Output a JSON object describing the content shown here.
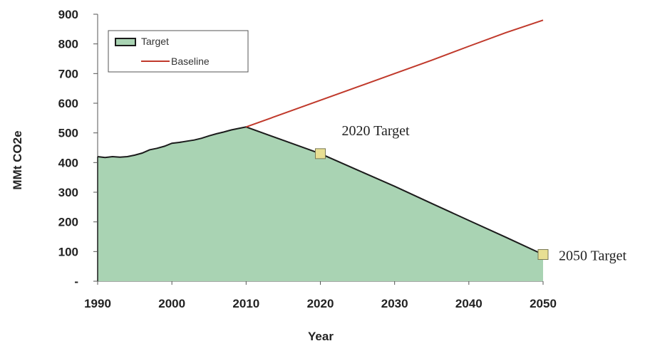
{
  "chart_data": {
    "type": "area",
    "x": [
      1990,
      1991,
      1992,
      1993,
      1994,
      1995,
      1996,
      1997,
      1998,
      1999,
      2000,
      2001,
      2002,
      2003,
      2004,
      2005,
      2006,
      2007,
      2008,
      2009,
      2010,
      2015,
      2020,
      2025,
      2030,
      2035,
      2040,
      2045,
      2050
    ],
    "series": [
      {
        "name": "Target",
        "type": "area",
        "color": "#a9d3b3",
        "edge_color": "#1b1b1b",
        "values": [
          420,
          417,
          420,
          418,
          420,
          425,
          432,
          443,
          448,
          455,
          465,
          468,
          472,
          476,
          482,
          490,
          497,
          503,
          510,
          515,
          520,
          475,
          430,
          375,
          320,
          262,
          205,
          148,
          90
        ]
      },
      {
        "name": "Baseline",
        "type": "line",
        "color": "#c0392b",
        "x": [
          2010,
          2015,
          2020,
          2025,
          2030,
          2035,
          2040,
          2045,
          2050
        ],
        "values": [
          520,
          565,
          610,
          655,
          700,
          745,
          792,
          838,
          880
        ]
      }
    ],
    "xlabel": "Year",
    "ylabel": "MMt CO2e",
    "xlim": [
      1990,
      2050
    ],
    "ylim": [
      0,
      900
    ],
    "x_ticks": [
      "1990",
      "2000",
      "2010",
      "2020",
      "2030",
      "2040",
      "2050"
    ],
    "x_tick_values": [
      1990,
      2000,
      2010,
      2020,
      2030,
      2040,
      2050
    ],
    "y_ticks": [
      "-",
      "100",
      "200",
      "300",
      "400",
      "500",
      "600",
      "700",
      "800",
      "900"
    ],
    "y_tick_values": [
      0,
      100,
      200,
      300,
      400,
      500,
      600,
      700,
      800,
      900
    ],
    "legend_position": "top-left",
    "annotations": [
      {
        "name": "annotation-2020-target",
        "text": "2020 Target",
        "x": 2020,
        "y": 430
      },
      {
        "name": "annotation-2050-target",
        "text": "2050 Target",
        "x": 2050,
        "y": 90
      }
    ],
    "marker_color": "#e8df93"
  }
}
